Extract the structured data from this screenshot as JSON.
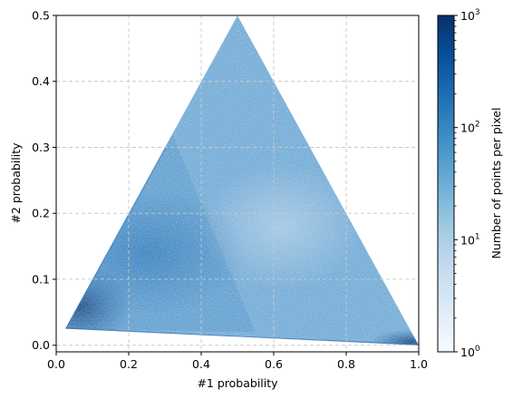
{
  "chart_data": {
    "type": "heatmap",
    "title": "",
    "xlabel": "#1 probability",
    "ylabel": "#2 probability",
    "xlim": [
      0.0,
      1.0
    ],
    "ylim": [
      -0.01,
      0.5
    ],
    "x_ticks": [
      "0.0",
      "0.2",
      "0.4",
      "0.6",
      "0.8",
      "1.0"
    ],
    "y_ticks": [
      "0.0",
      "0.1",
      "0.2",
      "0.3",
      "0.4",
      "0.5"
    ],
    "x_tick_values": [
      0.0,
      0.2,
      0.4,
      0.6,
      0.8,
      1.0
    ],
    "y_tick_values": [
      0.0,
      0.1,
      0.2,
      0.3,
      0.4,
      0.5
    ],
    "grid": true,
    "grid_style": "dashed",
    "region_vertices": [
      [
        0.025,
        0.025
      ],
      [
        0.5,
        0.5
      ],
      [
        1.0,
        0.0
      ]
    ],
    "dense_regions": [
      "near (0.03, 0.03)",
      "along lower-left edge",
      "near (1.0, 0.0)"
    ],
    "colorscale": "Blues",
    "colorbar": {
      "label": "Number of points per pixel",
      "scale": "log",
      "range": [
        1,
        1000
      ],
      "ticks": [
        "10",
        "10",
        "10",
        "10"
      ],
      "tick_exponents": [
        "0",
        "1",
        "2",
        "3"
      ],
      "tick_values": [
        1,
        10,
        100,
        1000
      ],
      "colors": [
        "#f7fbff",
        "#deebf7",
        "#c6dbef",
        "#9ecae1",
        "#6baed6",
        "#4292c6",
        "#2171b5",
        "#08519c",
        "#08306b"
      ]
    }
  }
}
